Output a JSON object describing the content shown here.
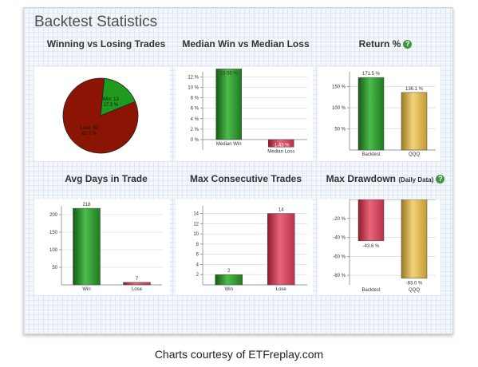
{
  "panel": {
    "title": "Backtest Statistics"
  },
  "caption": "Charts courtesy of ETFreplay.com",
  "help_icon": "?",
  "chart_data": [
    {
      "id": "win-lose",
      "type": "pie",
      "title": "Winning vs Losing Trades",
      "slices": [
        {
          "label": "Win: 13",
          "pct_label": "17.3 %",
          "value": 17.3,
          "color": "#1f9a1f"
        },
        {
          "label": "Lose: 62",
          "pct_label": "82.7 %",
          "value": 82.7,
          "color": "#8b1404"
        }
      ]
    },
    {
      "id": "median",
      "type": "bar",
      "title": "Median Win vs Median Loss",
      "categories": [
        "Median Win",
        "Median Loss"
      ],
      "values": [
        13.55,
        -1.43
      ],
      "data_labels": [
        "13.55 %",
        "-1.43 %"
      ],
      "colors": [
        "green",
        "red"
      ],
      "ylim": [
        -2,
        13
      ],
      "yticks": [
        0,
        2,
        4,
        6,
        8,
        10,
        12
      ],
      "ytick_labels": [
        "0 %",
        "2 %",
        "4 %",
        "6 %",
        "8 %",
        "10 %",
        "12 %"
      ]
    },
    {
      "id": "return",
      "type": "bar",
      "title": "Return %",
      "help": true,
      "categories": [
        "Backtest",
        "QQQ"
      ],
      "values": [
        171.5,
        136.1
      ],
      "data_labels": [
        "171.5 %",
        "136.1 %"
      ],
      "colors": [
        "green",
        "gold"
      ],
      "ylim": [
        0,
        185
      ],
      "yticks": [
        50,
        100,
        150
      ],
      "ytick_labels": [
        "50 %",
        "100 %",
        "150 %"
      ]
    },
    {
      "id": "days",
      "type": "bar",
      "title": "Avg Days in Trade",
      "categories": [
        "Win",
        "Lose"
      ],
      "values": [
        218,
        7
      ],
      "data_labels": [
        "218",
        "7"
      ],
      "colors": [
        "green",
        "red"
      ],
      "ylim": [
        0,
        225
      ],
      "yticks": [
        50,
        100,
        150,
        200
      ],
      "ytick_labels": [
        "50",
        "100",
        "150",
        "200"
      ]
    },
    {
      "id": "consec",
      "type": "bar",
      "title": "Max Consecutive Trades",
      "categories": [
        "Win",
        "Lose"
      ],
      "values": [
        2,
        14
      ],
      "data_labels": [
        "2",
        "14"
      ],
      "colors": [
        "green",
        "red"
      ],
      "ylim": [
        0,
        15.5
      ],
      "yticks": [
        2,
        4,
        6,
        8,
        10,
        12,
        14
      ],
      "ytick_labels": [
        "2",
        "4",
        "6",
        "8",
        "10",
        "12",
        "14"
      ]
    },
    {
      "id": "drawdown",
      "type": "bar",
      "title": "Max Drawdown",
      "title_suffix": "(Daily Data)",
      "help": true,
      "categories": [
        "Backtest",
        "QQQ"
      ],
      "values": [
        -43.6,
        -83.0
      ],
      "data_labels": [
        "-43.6 %",
        "-83.0 %"
      ],
      "colors": [
        "red",
        "gold"
      ],
      "ylim": [
        -90,
        0
      ],
      "yticks": [
        -20,
        -40,
        -60,
        -80
      ],
      "ytick_labels": [
        "-20 %",
        "-40 %",
        "-60 %",
        "-80 %"
      ]
    }
  ]
}
